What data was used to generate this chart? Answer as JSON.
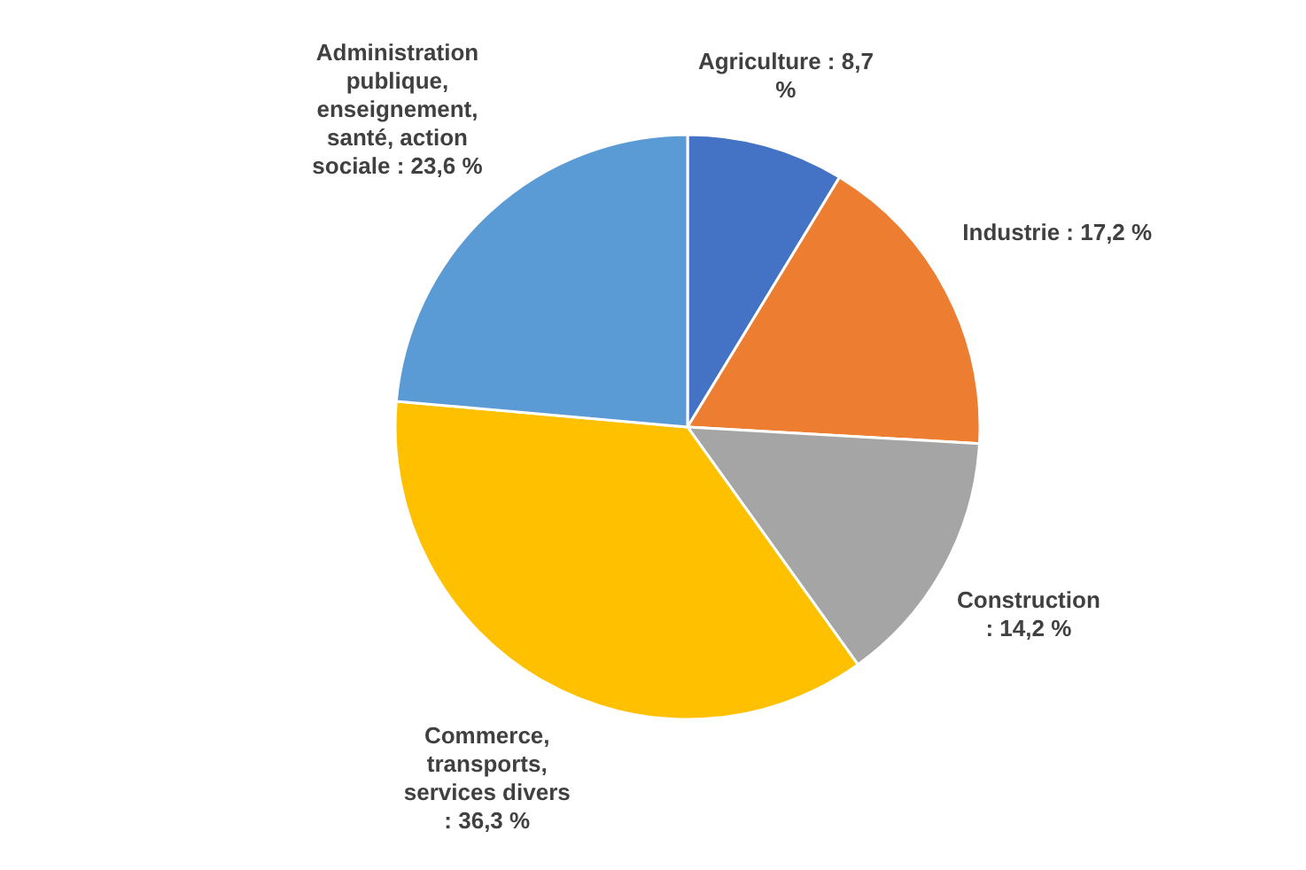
{
  "chart_data": {
    "type": "pie",
    "categories": [
      "Agriculture",
      "Industrie",
      "Construction",
      "Commerce, transports, services divers",
      "Administration publique, enseignement, santé, action sociale"
    ],
    "values": [
      8.7,
      17.2,
      14.2,
      36.3,
      23.6
    ],
    "value_labels": [
      ": 8,7 %",
      ": 17,2 %",
      ": 14,2 %",
      ": 36,3 %",
      ": 23,6 %"
    ],
    "colors": [
      "#4472c4",
      "#ed7d31",
      "#a5a5a5",
      "#ffc000",
      "#5b9bd5"
    ],
    "legend": false
  }
}
